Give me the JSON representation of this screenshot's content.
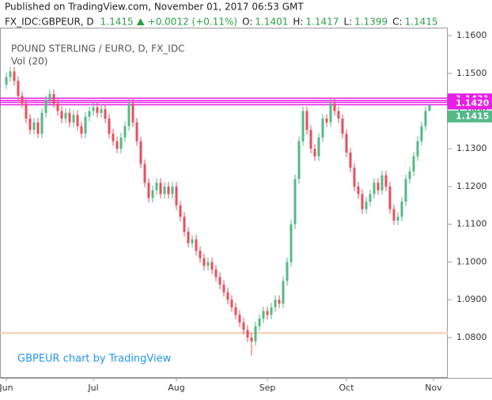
{
  "header": {
    "published": "Published on TradingView.com, November 01, 2017 06:53 GMT",
    "symbol": "FX_IDC:GBPEUR, D",
    "last": 1.1415,
    "change": "+0.0012 (+0.11%)",
    "ohlc_labels": [
      "O:",
      "H:",
      "L:",
      "C:"
    ],
    "ohlc_values": [
      1.1401,
      1.1417,
      1.1399,
      1.1415
    ]
  },
  "chart_data": {
    "type": "candlestick",
    "title": "POUND STERLING / EURO, D, FX_IDC",
    "subtitle": "Vol (20)",
    "watermark": "GBPEUR chart by TradingView",
    "up_color": "#53b987",
    "down_color": "#eb4d5c",
    "ylim": [
      1.0693,
      1.1621
    ],
    "yticks": [
      {
        "value": 1.16,
        "label": "1.1600"
      },
      {
        "value": 1.15,
        "label": "1.1500"
      },
      {
        "value": 1.14,
        "label": "1.1400"
      },
      {
        "value": 1.13,
        "label": "1.1300"
      },
      {
        "value": 1.12,
        "label": "1.1200"
      },
      {
        "value": 1.11,
        "label": "1.1100"
      },
      {
        "value": 1.1,
        "label": "1.1000"
      },
      {
        "value": 1.09,
        "label": "1.0900"
      },
      {
        "value": 1.08,
        "label": "1.0800"
      }
    ],
    "xlim": [
      -1.6,
      111.6
    ],
    "xticks": [
      {
        "value": 0,
        "label": "Jun"
      },
      {
        "value": 22,
        "label": "Jul"
      },
      {
        "value": 43,
        "label": "Aug"
      },
      {
        "value": 66,
        "label": "Sep"
      },
      {
        "value": 86,
        "label": "Oct"
      },
      {
        "value": 108,
        "label": "Nov"
      }
    ],
    "levels": [
      1.1431,
      {
        "value": 1.142,
        "label": "1.1420"
      }
    ],
    "level_color": "#e91ee6",
    "last_price": 1.1415,
    "support_line": 1.0812,
    "support_color": "#f7c9a8",
    "ohlc": [
      [
        1.147,
        1.1502,
        1.1458,
        1.149
      ],
      [
        1.149,
        1.1517,
        1.1478,
        1.1505
      ],
      [
        1.1505,
        1.1517,
        1.1468,
        1.148
      ],
      [
        1.148,
        1.1492,
        1.1428,
        1.144
      ],
      [
        1.144,
        1.1452,
        1.1408,
        1.142
      ],
      [
        1.142,
        1.1432,
        1.1368,
        1.138
      ],
      [
        1.138,
        1.1392,
        1.1338,
        1.135
      ],
      [
        1.135,
        1.1382,
        1.1338,
        1.137
      ],
      [
        1.137,
        1.1382,
        1.1328,
        1.134
      ],
      [
        1.134,
        1.1407,
        1.1328,
        1.1395
      ],
      [
        1.1395,
        1.1442,
        1.1383,
        1.143
      ],
      [
        1.143,
        1.1457,
        1.1418,
        1.1445
      ],
      [
        1.1445,
        1.1457,
        1.1408,
        1.142
      ],
      [
        1.142,
        1.1432,
        1.1388,
        1.14
      ],
      [
        1.14,
        1.1412,
        1.1368,
        1.138
      ],
      [
        1.138,
        1.1407,
        1.1368,
        1.1395
      ],
      [
        1.1395,
        1.1407,
        1.1358,
        1.137
      ],
      [
        1.137,
        1.1402,
        1.1358,
        1.139
      ],
      [
        1.139,
        1.1402,
        1.1348,
        1.136
      ],
      [
        1.136,
        1.1372,
        1.1328,
        1.134
      ],
      [
        1.134,
        1.1397,
        1.1328,
        1.1385
      ],
      [
        1.1385,
        1.1412,
        1.1373,
        1.14
      ],
      [
        1.14,
        1.1422,
        1.1388,
        1.141
      ],
      [
        1.141,
        1.1422,
        1.1383,
        1.1395
      ],
      [
        1.1395,
        1.1417,
        1.1383,
        1.1405
      ],
      [
        1.1405,
        1.1417,
        1.1368,
        1.138
      ],
      [
        1.138,
        1.1392,
        1.1328,
        1.134
      ],
      [
        1.134,
        1.1352,
        1.1308,
        1.132
      ],
      [
        1.132,
        1.1332,
        1.1288,
        1.13
      ],
      [
        1.13,
        1.1342,
        1.1288,
        1.133
      ],
      [
        1.133,
        1.1372,
        1.1318,
        1.136
      ],
      [
        1.136,
        1.1432,
        1.1348,
        1.142
      ],
      [
        1.142,
        1.1432,
        1.1358,
        1.137
      ],
      [
        1.137,
        1.1382,
        1.1308,
        1.132
      ],
      [
        1.132,
        1.1332,
        1.1248,
        1.126
      ],
      [
        1.126,
        1.1272,
        1.1198,
        1.121
      ],
      [
        1.121,
        1.1222,
        1.1158,
        1.117
      ],
      [
        1.117,
        1.1202,
        1.1158,
        1.119
      ],
      [
        1.119,
        1.1222,
        1.1178,
        1.121
      ],
      [
        1.121,
        1.1222,
        1.1168,
        1.118
      ],
      [
        1.118,
        1.1212,
        1.1168,
        1.12
      ],
      [
        1.12,
        1.1212,
        1.1168,
        1.118
      ],
      [
        1.118,
        1.1212,
        1.1168,
        1.12
      ],
      [
        1.12,
        1.1212,
        1.1138,
        1.115
      ],
      [
        1.115,
        1.1162,
        1.1108,
        1.112
      ],
      [
        1.112,
        1.1132,
        1.1068,
        1.108
      ],
      [
        1.108,
        1.1092,
        1.1038,
        1.105
      ],
      [
        1.105,
        1.1072,
        1.1038,
        1.106
      ],
      [
        1.106,
        1.1072,
        1.1018,
        1.103
      ],
      [
        1.103,
        1.1042,
        1.0998,
        1.101
      ],
      [
        1.101,
        1.1022,
        1.0978,
        1.099
      ],
      [
        1.099,
        1.1012,
        1.0978,
        1.1
      ],
      [
        1.1,
        1.1012,
        1.0968,
        1.098
      ],
      [
        1.098,
        1.0992,
        1.0948,
        1.096
      ],
      [
        1.096,
        1.0972,
        1.0928,
        1.094
      ],
      [
        1.094,
        1.0952,
        1.0908,
        1.092
      ],
      [
        1.092,
        1.0932,
        1.0888,
        1.09
      ],
      [
        1.09,
        1.0912,
        1.0868,
        1.088
      ],
      [
        1.088,
        1.0892,
        1.0848,
        1.086
      ],
      [
        1.086,
        1.0872,
        1.0828,
        1.084
      ],
      [
        1.084,
        1.0852,
        1.0808,
        1.082
      ],
      [
        1.082,
        1.0832,
        1.0788,
        1.08
      ],
      [
        1.08,
        1.0812,
        1.0752,
        1.079
      ],
      [
        1.079,
        1.0842,
        1.0778,
        1.083
      ],
      [
        1.083,
        1.0862,
        1.0818,
        1.085
      ],
      [
        1.085,
        1.0882,
        1.0838,
        1.087
      ],
      [
        1.087,
        1.0882,
        1.0848,
        1.086
      ],
      [
        1.086,
        1.0892,
        1.0848,
        1.088
      ],
      [
        1.088,
        1.0912,
        1.0868,
        1.09
      ],
      [
        1.09,
        1.0912,
        1.0878,
        1.089
      ],
      [
        1.089,
        1.0962,
        1.0878,
        1.095
      ],
      [
        1.095,
        1.1012,
        1.0938,
        1.1
      ],
      [
        1.1,
        1.1112,
        1.0988,
        1.11
      ],
      [
        1.11,
        1.1232,
        1.1088,
        1.122
      ],
      [
        1.122,
        1.1332,
        1.1208,
        1.132
      ],
      [
        1.132,
        1.1412,
        1.1308,
        1.14
      ],
      [
        1.14,
        1.1412,
        1.1338,
        1.135
      ],
      [
        1.135,
        1.1362,
        1.1288,
        1.13
      ],
      [
        1.13,
        1.1312,
        1.1268,
        1.128
      ],
      [
        1.128,
        1.1342,
        1.1268,
        1.133
      ],
      [
        1.133,
        1.1392,
        1.1318,
        1.138
      ],
      [
        1.138,
        1.1392,
        1.1358,
        1.137
      ],
      [
        1.137,
        1.1432,
        1.1358,
        1.142
      ],
      [
        1.142,
        1.1432,
        1.1388,
        1.14
      ],
      [
        1.14,
        1.1412,
        1.1368,
        1.138
      ],
      [
        1.138,
        1.1392,
        1.1328,
        1.134
      ],
      [
        1.134,
        1.1352,
        1.1278,
        1.129
      ],
      [
        1.129,
        1.1302,
        1.1238,
        1.125
      ],
      [
        1.125,
        1.1262,
        1.1188,
        1.12
      ],
      [
        1.12,
        1.1212,
        1.1168,
        1.118
      ],
      [
        1.118,
        1.1192,
        1.1128,
        1.114
      ],
      [
        1.114,
        1.1172,
        1.1128,
        1.116
      ],
      [
        1.116,
        1.1192,
        1.1148,
        1.118
      ],
      [
        1.118,
        1.1222,
        1.1168,
        1.121
      ],
      [
        1.121,
        1.1222,
        1.1178,
        1.119
      ],
      [
        1.119,
        1.1242,
        1.1178,
        1.123
      ],
      [
        1.123,
        1.1242,
        1.1188,
        1.12
      ],
      [
        1.12,
        1.1212,
        1.1128,
        1.114
      ],
      [
        1.114,
        1.1152,
        1.1098,
        1.111
      ],
      [
        1.111,
        1.1132,
        1.1098,
        1.112
      ],
      [
        1.112,
        1.1172,
        1.1108,
        1.116
      ],
      [
        1.116,
        1.1232,
        1.1148,
        1.122
      ],
      [
        1.122,
        1.1252,
        1.1208,
        1.124
      ],
      [
        1.124,
        1.1292,
        1.1228,
        1.128
      ],
      [
        1.128,
        1.1332,
        1.1268,
        1.132
      ],
      [
        1.132,
        1.1372,
        1.1308,
        1.136
      ],
      [
        1.136,
        1.1412,
        1.1348,
        1.14
      ],
      [
        1.1401,
        1.1417,
        1.1399,
        1.1415
      ]
    ]
  }
}
